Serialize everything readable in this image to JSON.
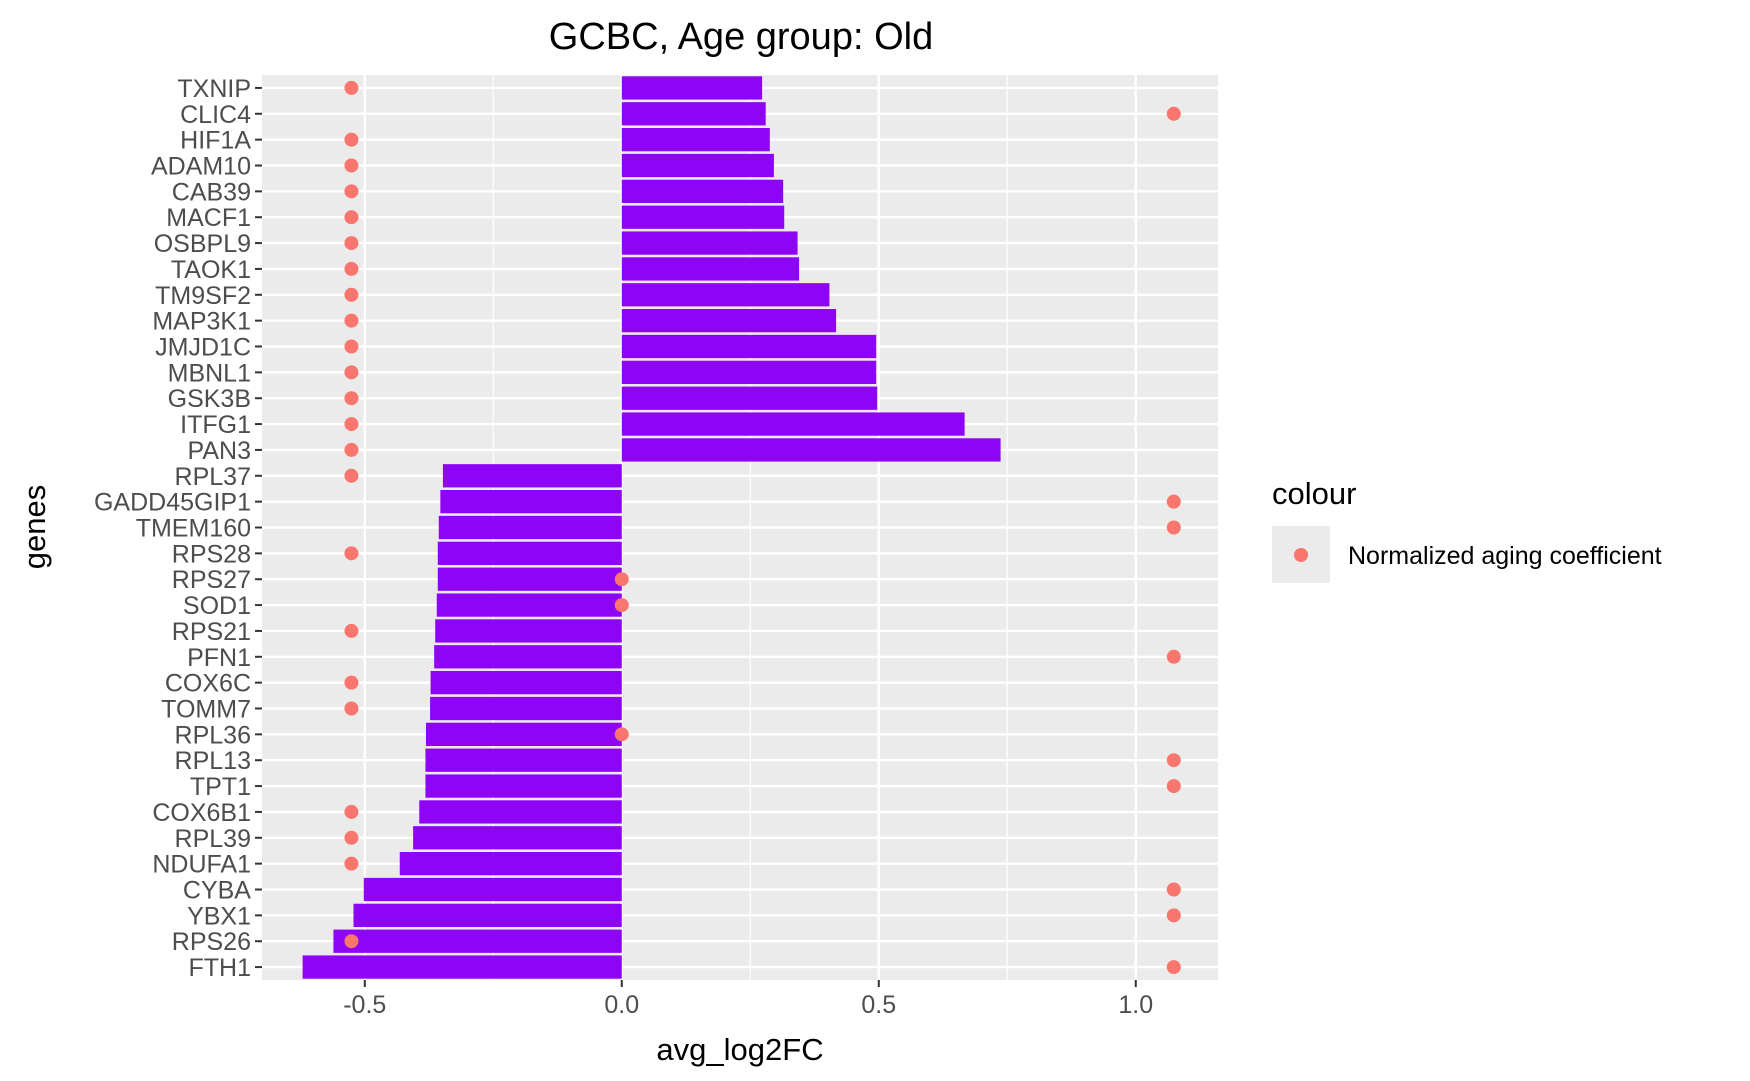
{
  "chart_data": {
    "type": "bar",
    "orientation": "horizontal",
    "title": "GCBC, Age group: Old",
    "xlabel": "avg_log2FC",
    "ylabel": "genes",
    "xlim": [
      -0.7,
      1.16
    ],
    "xticks": [
      -0.5,
      0.0,
      0.5,
      1.0
    ],
    "xtick_labels": [
      "-0.5",
      "0.0",
      "0.5",
      "1.0"
    ],
    "grid": true,
    "bar_color": "#8e05f5",
    "panel_background": "#ebebeb",
    "point_color": "#f8766d",
    "legend": {
      "title": "colour",
      "label": "Normalized aging coefficient",
      "position": "right"
    },
    "categories": [
      "TXNIP",
      "CLIC4",
      "HIF1A",
      "ADAM10",
      "CAB39",
      "MACF1",
      "OSBPL9",
      "TAOK1",
      "TM9SF2",
      "MAP3K1",
      "JMJD1C",
      "MBNL1",
      "GSK3B",
      "ITFG1",
      "PAN3",
      "RPL37",
      "GADD45GIP1",
      "TMEM160",
      "RPS28",
      "RPS27",
      "SOD1",
      "RPS21",
      "PFN1",
      "COX6C",
      "TOMM7",
      "RPL36",
      "RPL13",
      "TPT1",
      "COX6B1",
      "RPL39",
      "NDUFA1",
      "CYBA",
      "YBX1",
      "RPS26",
      "FTH1"
    ],
    "series": [
      {
        "type": "bar",
        "values": [
          0.273,
          0.28,
          0.288,
          0.296,
          0.314,
          0.316,
          0.342,
          0.345,
          0.404,
          0.417,
          0.495,
          0.495,
          0.497,
          0.667,
          0.737,
          -0.348,
          -0.353,
          -0.356,
          -0.358,
          -0.358,
          -0.36,
          -0.363,
          -0.365,
          -0.372,
          -0.373,
          -0.381,
          -0.382,
          -0.382,
          -0.394,
          -0.406,
          -0.432,
          -0.502,
          -0.522,
          -0.561,
          -0.621
        ]
      },
      {
        "type": "point",
        "name": "Normalized aging coefficient",
        "values": [
          -0.526,
          1.074,
          -0.526,
          -0.526,
          -0.526,
          -0.526,
          -0.526,
          -0.526,
          -0.526,
          -0.526,
          -0.526,
          -0.526,
          -0.526,
          -0.526,
          -0.526,
          -0.526,
          1.074,
          1.074,
          -0.526,
          0.0,
          0.0,
          -0.526,
          1.074,
          -0.526,
          -0.526,
          0.0,
          1.074,
          1.074,
          -0.526,
          -0.526,
          -0.526,
          1.074,
          1.074,
          -0.526,
          1.074
        ]
      }
    ]
  }
}
